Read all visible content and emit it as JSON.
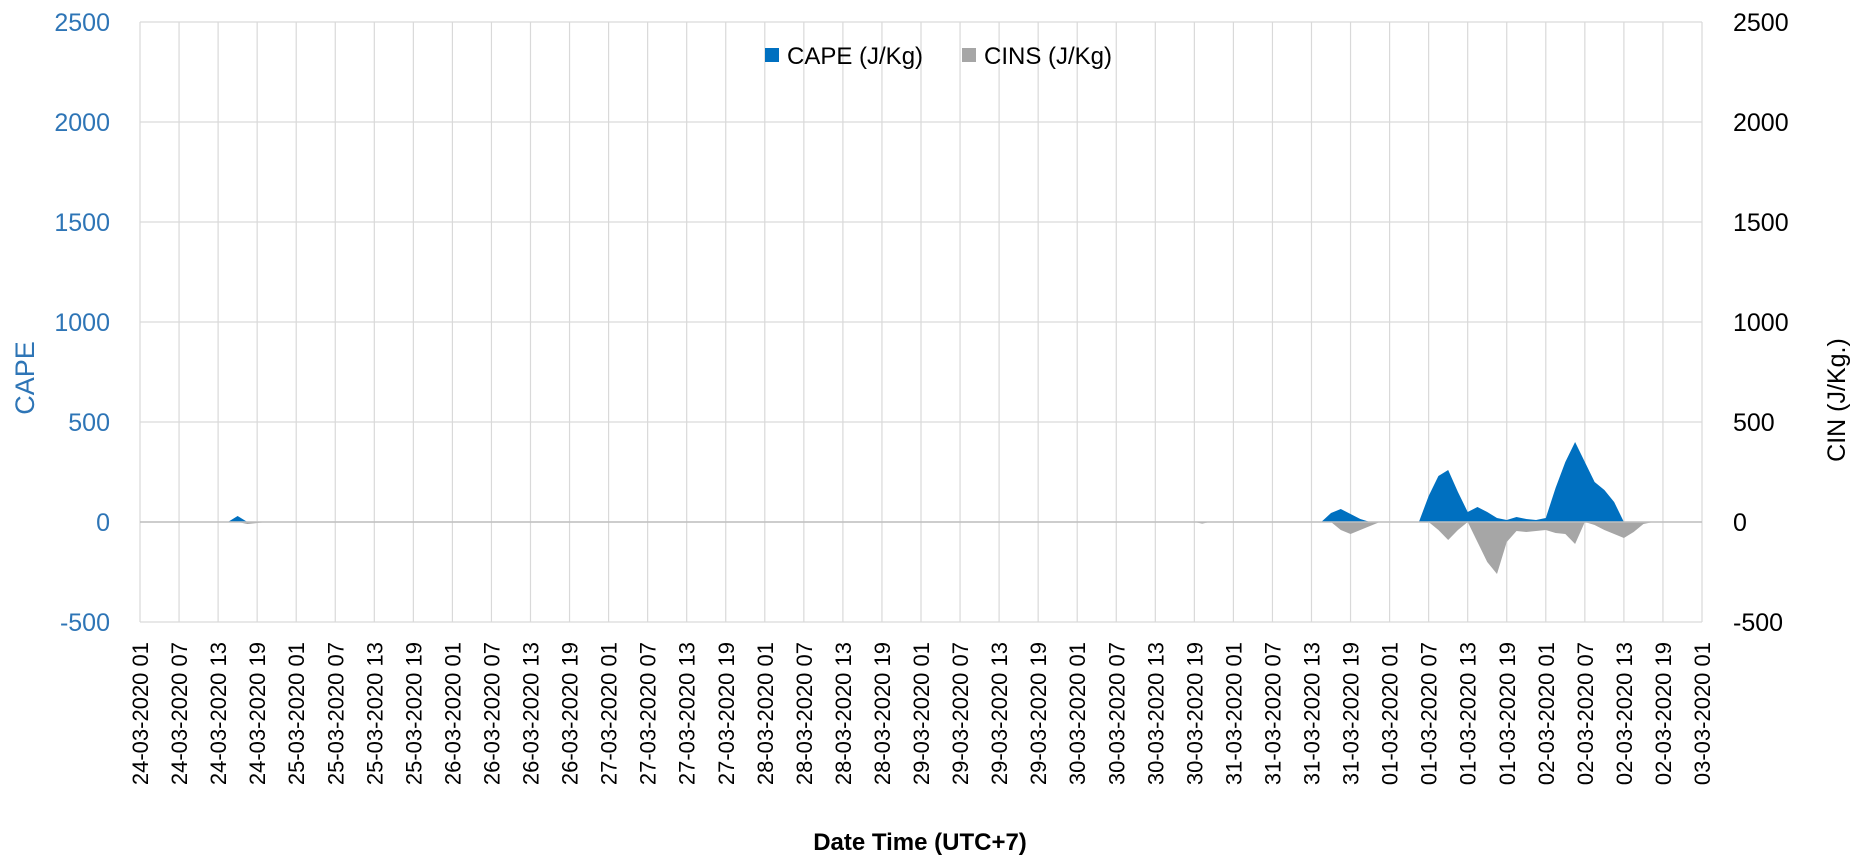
{
  "chart_data": {
    "type": "area",
    "xlabel": "Date Time (UTC+7)",
    "ylabel": "CAPE",
    "y2label": "CIN (J/Kg.)",
    "ylim": [
      -500,
      2500
    ],
    "y2lim": [
      -500,
      2500
    ],
    "yticks": [
      "2500",
      "2000",
      "1500",
      "1000",
      "500",
      "0",
      "-500"
    ],
    "grid": true,
    "legend_position": "top-center",
    "colors": {
      "cape": "#0070c0",
      "cins": "#a6a6a6",
      "left_axis": "#2e75b6"
    },
    "x": [
      "24-03-2020 01",
      "24-03-2020 07",
      "24-03-2020 13",
      "24-03-2020 19",
      "25-03-2020 01",
      "25-03-2020 07",
      "25-03-2020 13",
      "25-03-2020 19",
      "26-03-2020 01",
      "26-03-2020 07",
      "26-03-2020 13",
      "26-03-2020 19",
      "27-03-2020 01",
      "27-03-2020 07",
      "27-03-2020 13",
      "27-03-2020 19",
      "28-03-2020 01",
      "28-03-2020 07",
      "28-03-2020 13",
      "28-03-2020 19",
      "29-03-2020 01",
      "29-03-2020 07",
      "29-03-2020 13",
      "29-03-2020 19",
      "30-03-2020 01",
      "30-03-2020 07",
      "30-03-2020 13",
      "30-03-2020 19",
      "31-03-2020 01",
      "31-03-2020 07",
      "31-03-2020 13",
      "31-03-2020 19",
      "01-03-2020 01",
      "01-03-2020 07",
      "01-03-2020 13",
      "01-03-2020 19",
      "02-03-2020 01",
      "02-03-2020 07",
      "02-03-2020 13",
      "02-03-2020 19",
      "03-03-2020 01"
    ],
    "series": [
      {
        "name": "CAPE (J/Kg)",
        "points": [
          [
            0,
            0
          ],
          [
            2,
            0
          ],
          [
            2.25,
            0
          ],
          [
            2.5,
            30
          ],
          [
            2.75,
            0
          ],
          [
            30,
            0
          ],
          [
            30.25,
            0
          ],
          [
            30.5,
            45
          ],
          [
            30.75,
            65
          ],
          [
            31,
            40
          ],
          [
            31.25,
            15
          ],
          [
            31.5,
            0
          ],
          [
            32.5,
            0
          ],
          [
            32.75,
            0
          ],
          [
            33.0,
            130
          ],
          [
            33.25,
            230
          ],
          [
            33.5,
            260
          ],
          [
            33.75,
            150
          ],
          [
            34.0,
            50
          ],
          [
            34.25,
            75
          ],
          [
            34.5,
            50
          ],
          [
            34.75,
            20
          ],
          [
            35.0,
            10
          ],
          [
            35.25,
            25
          ],
          [
            35.5,
            15
          ],
          [
            35.75,
            10
          ],
          [
            36.0,
            20
          ],
          [
            36.25,
            170
          ],
          [
            36.5,
            300
          ],
          [
            36.75,
            400
          ],
          [
            37.0,
            300
          ],
          [
            37.25,
            200
          ],
          [
            37.5,
            160
          ],
          [
            37.75,
            100
          ],
          [
            38,
            0
          ],
          [
            40,
            0
          ]
        ]
      },
      {
        "name": "CINS (J/Kg)",
        "points": [
          [
            0,
            0
          ],
          [
            2.5,
            0
          ],
          [
            2.75,
            -10
          ],
          [
            3,
            -5
          ],
          [
            3.25,
            0
          ],
          [
            27,
            0
          ],
          [
            27.2,
            -8
          ],
          [
            27.4,
            0
          ],
          [
            30.5,
            0
          ],
          [
            30.75,
            -40
          ],
          [
            31,
            -60
          ],
          [
            31.25,
            -40
          ],
          [
            31.5,
            -20
          ],
          [
            31.75,
            0
          ],
          [
            33,
            0
          ],
          [
            33.25,
            -40
          ],
          [
            33.5,
            -90
          ],
          [
            33.75,
            -40
          ],
          [
            34,
            0
          ],
          [
            34.25,
            -100
          ],
          [
            34.5,
            -200
          ],
          [
            34.75,
            -260
          ],
          [
            35,
            -100
          ],
          [
            35.25,
            -45
          ],
          [
            35.5,
            -50
          ],
          [
            35.75,
            -45
          ],
          [
            36,
            -40
          ],
          [
            36.25,
            -55
          ],
          [
            36.5,
            -60
          ],
          [
            36.75,
            -110
          ],
          [
            37,
            0
          ],
          [
            37.25,
            -15
          ],
          [
            37.5,
            -40
          ],
          [
            37.75,
            -60
          ],
          [
            38,
            -80
          ],
          [
            38.25,
            -50
          ],
          [
            38.5,
            -10
          ],
          [
            38.75,
            0
          ],
          [
            40,
            0
          ]
        ]
      }
    ]
  }
}
